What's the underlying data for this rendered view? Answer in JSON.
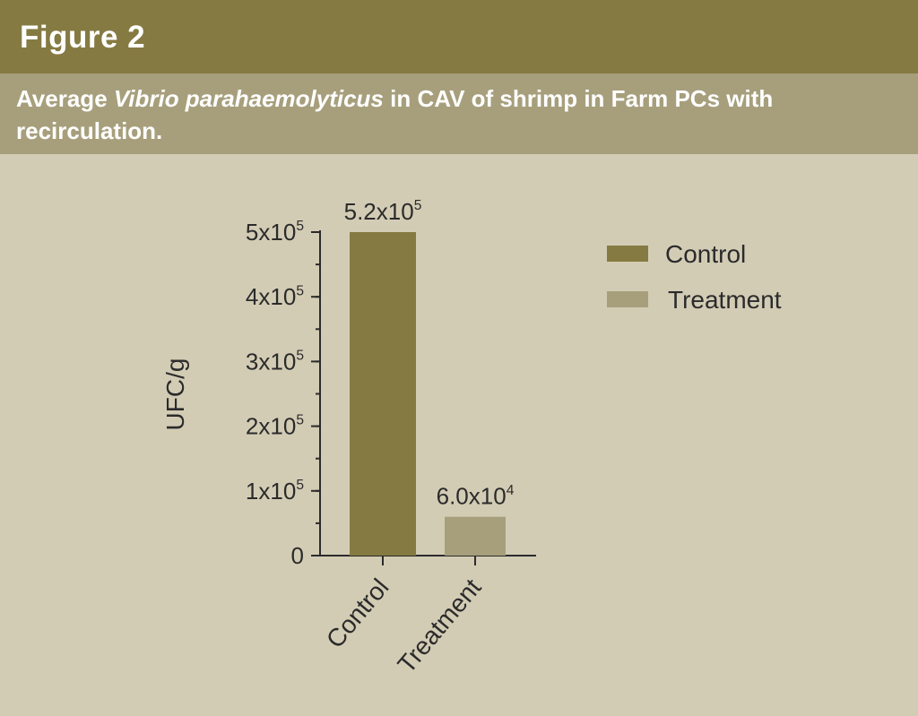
{
  "figure_label": "Figure 2",
  "title_parts": {
    "before": "Average ",
    "species": "Vibrio parahaemolyticus",
    "after": " in CAV of shrimp in Farm PCs with recirculation."
  },
  "colors": {
    "header": "#857a42",
    "title_bar": "#a79f7c",
    "background": "#d3ccb5",
    "control": "#857a42",
    "treatment": "#a79f7c",
    "axis": "#2b2b2b"
  },
  "chart_data": {
    "type": "bar",
    "title": "Average Vibrio parahaemolyticus in CAV of shrimp in Farm PCs with recirculation.",
    "categories": [
      "Control",
      "Treatment"
    ],
    "values": [
      520000,
      60000
    ],
    "value_labels": [
      {
        "base": "5.2x10",
        "exp": "5"
      },
      {
        "base": "6.0x10",
        "exp": "4"
      }
    ],
    "ylabel": "UFC/g",
    "xlabel": "",
    "ylim": [
      0,
      500000
    ],
    "yticks": [
      {
        "value": 0,
        "base": "0",
        "exp": ""
      },
      {
        "value": 100000,
        "base": "1x10",
        "exp": "5"
      },
      {
        "value": 200000,
        "base": "2x10",
        "exp": "5"
      },
      {
        "value": 300000,
        "base": "3x10",
        "exp": "5"
      },
      {
        "value": 400000,
        "base": "4x10",
        "exp": "5"
      },
      {
        "value": 500000,
        "base": "5x10",
        "exp": "5"
      }
    ],
    "legend": [
      {
        "name": "Control",
        "color": "#857a42"
      },
      {
        "name": "Treatment",
        "color": "#a79f7c"
      }
    ],
    "legend_position": "right",
    "grid": false
  }
}
